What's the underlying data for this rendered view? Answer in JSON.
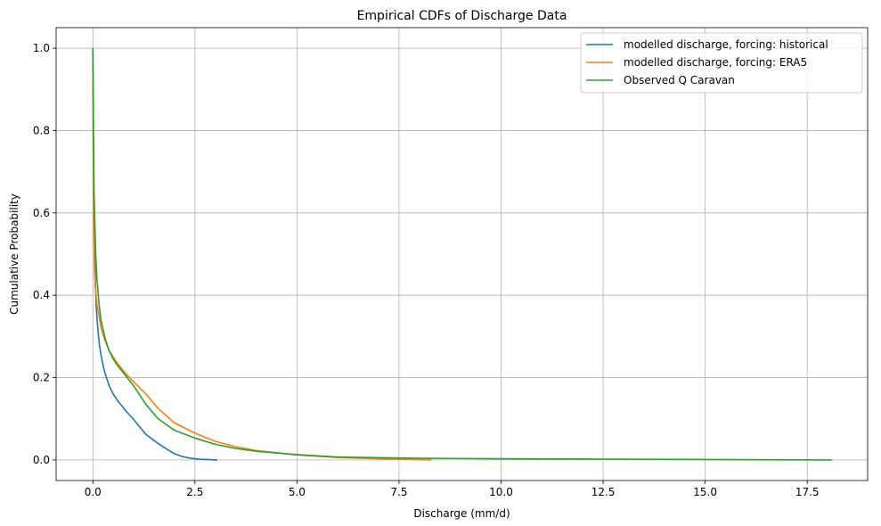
{
  "chart_data": {
    "type": "line",
    "title": "Empirical CDFs of Discharge Data",
    "xlabel": "Discharge (mm/d)",
    "ylabel": "Cumulative Probability",
    "xlim": [
      -0.9,
      18.98
    ],
    "ylim": [
      -0.05,
      1.05
    ],
    "xticks": [
      0.0,
      2.5,
      5.0,
      7.5,
      10.0,
      12.5,
      15.0,
      17.5
    ],
    "xtick_labels": [
      "0.0",
      "2.5",
      "5.0",
      "7.5",
      "10.0",
      "12.5",
      "15.0",
      "17.5"
    ],
    "yticks": [
      0.0,
      0.2,
      0.4,
      0.6,
      0.8,
      1.0
    ],
    "ytick_labels": [
      "0.0",
      "0.2",
      "0.4",
      "0.6",
      "0.8",
      "1.0"
    ],
    "grid": true,
    "legend_position": "top-right",
    "series": [
      {
        "name": "modelled discharge, forcing: historical",
        "color": "#1f77b4",
        "x": [
          0.0,
          0.01,
          0.02,
          0.04,
          0.06,
          0.08,
          0.1,
          0.13,
          0.16,
          0.2,
          0.25,
          0.3,
          0.4,
          0.5,
          0.6,
          0.8,
          1.0,
          1.3,
          1.6,
          1.8,
          2.0,
          2.2,
          2.4,
          2.6,
          2.8,
          3.05
        ],
        "y": [
          1.0,
          0.8,
          0.64,
          0.52,
          0.44,
          0.38,
          0.345,
          0.31,
          0.28,
          0.255,
          0.23,
          0.21,
          0.18,
          0.16,
          0.145,
          0.12,
          0.098,
          0.062,
          0.04,
          0.027,
          0.015,
          0.008,
          0.004,
          0.002,
          0.001,
          0.0
        ]
      },
      {
        "name": "modelled discharge, forcing: ERA5",
        "color": "#ff7f0e",
        "x": [
          0.0,
          0.01,
          0.02,
          0.04,
          0.06,
          0.08,
          0.1,
          0.15,
          0.2,
          0.3,
          0.4,
          0.5,
          0.6,
          0.8,
          1.0,
          1.3,
          1.6,
          2.0,
          2.5,
          3.0,
          3.5,
          4.0,
          5.0,
          6.0,
          7.0,
          8.3
        ],
        "y": [
          1.0,
          0.75,
          0.58,
          0.46,
          0.42,
          0.4,
          0.38,
          0.35,
          0.32,
          0.29,
          0.265,
          0.25,
          0.235,
          0.21,
          0.19,
          0.16,
          0.125,
          0.09,
          0.065,
          0.045,
          0.032,
          0.023,
          0.012,
          0.006,
          0.003,
          0.0
        ]
      },
      {
        "name": "Observed Q Caravan",
        "color": "#2ca02c",
        "x": [
          0.0,
          0.01,
          0.02,
          0.03,
          0.05,
          0.07,
          0.1,
          0.15,
          0.2,
          0.3,
          0.4,
          0.5,
          0.6,
          0.8,
          1.0,
          1.3,
          1.6,
          2.0,
          2.5,
          3.0,
          3.5,
          4.0,
          5.0,
          6.0,
          8.0,
          10.0,
          12.5,
          15.0,
          18.1
        ],
        "y": [
          1.0,
          0.88,
          0.75,
          0.65,
          0.57,
          0.5,
          0.44,
          0.38,
          0.34,
          0.295,
          0.265,
          0.245,
          0.23,
          0.205,
          0.18,
          0.135,
          0.1,
          0.072,
          0.053,
          0.038,
          0.028,
          0.021,
          0.013,
          0.007,
          0.004,
          0.003,
          0.002,
          0.001,
          0.0
        ]
      }
    ]
  }
}
